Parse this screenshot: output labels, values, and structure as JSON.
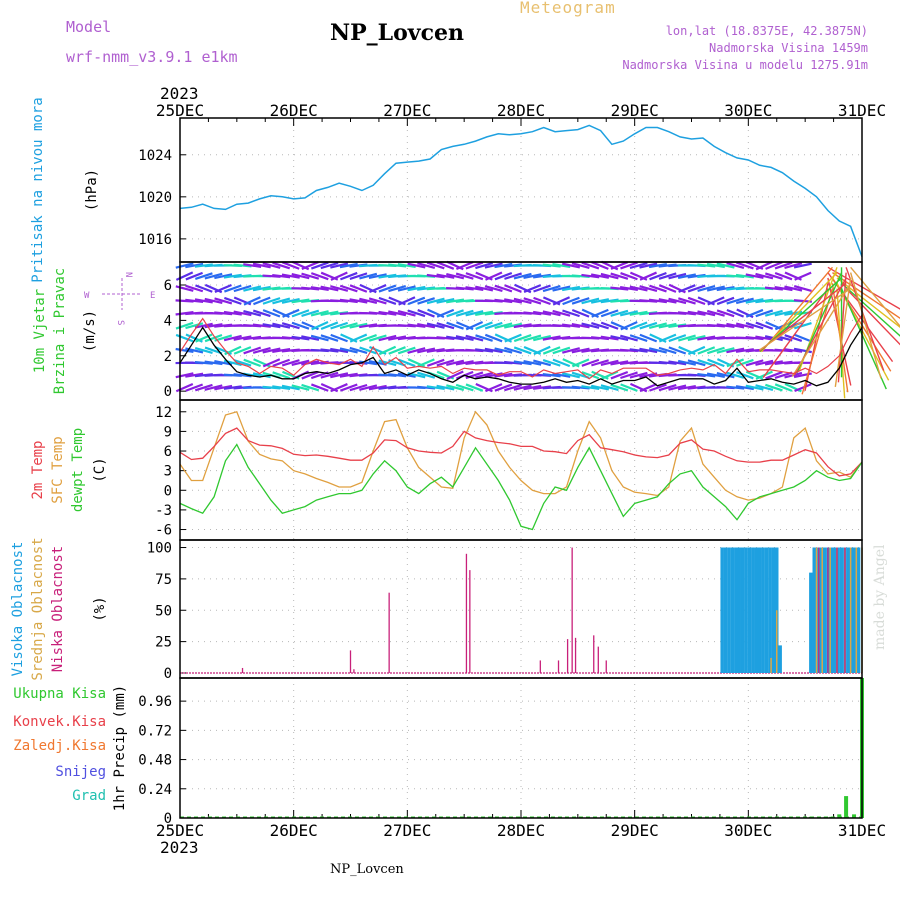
{
  "header": {
    "model_label": "Model",
    "model_name": "wrf-nmm_v3.9.1  e1km",
    "station": "NP_Lovcen",
    "product": "Meteogram",
    "lonlat": "lon,lat (18.8375E, 42.3875N)",
    "altitude": "Nadmorska Visina 1459m",
    "model_altitude": "Nadmorska Visina u modelu 1275.91m",
    "footer_station": "NP_Lovcen",
    "credit": "made by Angel",
    "year_top": "2023",
    "year_bottom": "2023"
  },
  "colors": {
    "pressure": "#1ea0e0",
    "wind_speed": "#000000",
    "gust": "#e8404a",
    "temp2m": "#e8404a",
    "sfc_temp": "#e0a040",
    "dewpoint": "#30c830",
    "high_cloud": "#1ea0e0",
    "mid_cloud": "#d8a848",
    "low_cloud": "#c8207a",
    "total_precip": "#30c830"
  },
  "chart_data": [
    {
      "type": "line",
      "name": "pressure",
      "ylabel_lines": [
        "Pritisak na nivou mora",
        "(hPa)"
      ],
      "x_ticks": [
        "25DEC",
        "26DEC",
        "27DEC",
        "28DEC",
        "29DEC",
        "30DEC",
        "31DEC"
      ],
      "y_ticks": [
        1016,
        1020,
        1024
      ],
      "ylim": [
        1013.8,
        1027.5
      ],
      "grid": true,
      "series": [
        {
          "x": [
            0,
            0.1,
            0.2,
            0.3,
            0.4,
            0.5,
            0.6,
            0.7,
            0.8,
            0.9,
            1.0,
            1.1,
            1.2,
            1.3,
            1.4,
            1.5,
            1.6,
            1.7,
            1.8,
            1.9,
            2.0,
            2.1,
            2.2,
            2.3,
            2.4,
            2.5,
            2.6,
            2.7,
            2.8,
            2.9,
            3.0,
            3.1,
            3.2,
            3.3,
            3.4,
            3.5,
            3.6,
            3.7,
            3.8,
            3.9,
            4.0,
            4.1,
            4.2,
            4.3,
            4.4,
            4.5,
            4.6,
            4.7,
            4.8,
            4.9,
            5.0,
            5.1,
            5.2,
            5.3,
            5.4,
            5.5,
            5.6,
            5.7,
            5.8,
            5.9,
            6.0
          ],
          "y": [
            1018.9,
            1019.0,
            1019.3,
            1018.9,
            1018.8,
            1019.3,
            1019.4,
            1019.8,
            1020.1,
            1020.0,
            1019.8,
            1019.9,
            1020.6,
            1020.9,
            1021.3,
            1021.0,
            1020.6,
            1021.1,
            1022.2,
            1023.2,
            1023.3,
            1023.4,
            1023.6,
            1024.5,
            1024.8,
            1025.0,
            1025.3,
            1025.7,
            1026.0,
            1025.9,
            1026.0,
            1026.2,
            1026.6,
            1026.2,
            1026.3,
            1026.4,
            1026.8,
            1026.3,
            1025.0,
            1025.3,
            1026.0,
            1026.6,
            1026.6,
            1026.2,
            1025.7,
            1025.5,
            1025.6,
            1024.8,
            1024.2,
            1023.7,
            1023.5,
            1023.0,
            1022.8,
            1022.3,
            1021.5,
            1020.8,
            1020.0,
            1018.7,
            1017.7,
            1017.2,
            1014.3
          ]
        }
      ]
    },
    {
      "type": "line",
      "name": "wind",
      "ylabel_lines": [
        "10m Vjetar",
        "Brzina i Pravac",
        "(m/s)"
      ],
      "y_ticks": [
        0,
        2,
        4,
        6
      ],
      "ylim": [
        -0.5,
        7.3
      ],
      "grid": true,
      "compass": {
        "n": "N",
        "s": "S",
        "e": "E",
        "w": "W"
      },
      "series": [
        {
          "name": "speed",
          "x": [
            0,
            0.1,
            0.2,
            0.3,
            0.4,
            0.5,
            0.6,
            0.7,
            0.8,
            0.9,
            1.0,
            1.1,
            1.2,
            1.3,
            1.4,
            1.5,
            1.6,
            1.7,
            1.8,
            1.9,
            2.0,
            2.1,
            2.2,
            2.3,
            2.4,
            2.5,
            2.6,
            2.7,
            2.8,
            2.9,
            3.0,
            3.1,
            3.2,
            3.3,
            3.4,
            3.5,
            3.6,
            3.7,
            3.8,
            3.9,
            4.0,
            4.1,
            4.2,
            4.3,
            4.4,
            4.5,
            4.6,
            4.7,
            4.8,
            4.9,
            5.0,
            5.1,
            5.2,
            5.3,
            5.4,
            5.5,
            5.6,
            5.7,
            5.8,
            5.9,
            6.0
          ],
          "y": [
            1.6,
            2.6,
            3.6,
            2.6,
            1.8,
            1.1,
            0.9,
            0.8,
            0.9,
            0.7,
            0.7,
            1.0,
            1.1,
            1.0,
            1.2,
            1.5,
            1.6,
            1.9,
            1.0,
            1.2,
            0.9,
            1.2,
            1.0,
            0.7,
            0.5,
            0.9,
            0.7,
            0.8,
            0.7,
            0.5,
            0.4,
            0.4,
            0.5,
            0.7,
            0.5,
            0.6,
            0.4,
            0.7,
            0.4,
            0.6,
            0.6,
            0.8,
            0.3,
            0.5,
            0.7,
            0.7,
            0.7,
            0.4,
            0.6,
            1.3,
            0.5,
            0.6,
            0.7,
            0.5,
            0.4,
            0.6,
            0.3,
            0.5,
            1.3,
            2.6,
            3.6
          ]
        },
        {
          "name": "gust",
          "x": [
            0,
            0.1,
            0.2,
            0.3,
            0.4,
            0.5,
            0.6,
            0.7,
            0.8,
            0.9,
            1.0,
            1.1,
            1.2,
            1.3,
            1.4,
            1.5,
            1.6,
            1.7,
            1.8,
            1.9,
            2.0,
            2.1,
            2.2,
            2.3,
            2.4,
            2.5,
            2.6,
            2.7,
            2.8,
            2.9,
            3.0,
            3.1,
            3.2,
            3.3,
            3.4,
            3.5,
            3.6,
            3.7,
            3.8,
            3.9,
            4.0,
            4.1,
            4.2,
            4.3,
            4.4,
            4.5,
            4.6,
            4.7,
            4.8,
            4.9,
            5.0,
            5.1,
            5.2,
            5.3,
            5.4,
            5.5,
            5.6,
            5.7,
            5.8,
            5.9,
            6.0
          ],
          "y": [
            2.2,
            3.2,
            4.1,
            3.1,
            2.3,
            1.6,
            1.4,
            1.0,
            1.4,
            1.3,
            0.9,
            1.5,
            1.8,
            1.6,
            1.5,
            1.8,
            1.4,
            2.5,
            1.5,
            1.9,
            1.3,
            1.4,
            1.3,
            1.4,
            1.0,
            1.3,
            1.2,
            1.2,
            0.9,
            1.1,
            1.1,
            0.8,
            1.2,
            1.0,
            1.1,
            1.2,
            0.7,
            1.2,
            1.0,
            1.3,
            1.3,
            1.3,
            0.9,
            1.0,
            1.2,
            1.3,
            1.2,
            1.5,
            1.0,
            1.8,
            1.1,
            1.2,
            1.2,
            1.1,
            1.0,
            1.3,
            1.0,
            1.4,
            2.0,
            3.3,
            4.3
          ]
        }
      ]
    },
    {
      "type": "line",
      "name": "temperature",
      "ylabel_lines": [
        "2m Temp",
        "SFC Temp",
        "dewpt Temp",
        "(C)"
      ],
      "y_ticks": [
        -6,
        -3,
        0,
        3,
        6,
        9,
        12
      ],
      "ylim": [
        -7.6,
        13.8
      ],
      "grid": true,
      "series": [
        {
          "name": "2m Temp",
          "x": [
            0,
            0.1,
            0.2,
            0.3,
            0.4,
            0.5,
            0.6,
            0.7,
            0.8,
            0.9,
            1.0,
            1.1,
            1.2,
            1.3,
            1.4,
            1.5,
            1.6,
            1.7,
            1.8,
            1.9,
            2.0,
            2.1,
            2.2,
            2.3,
            2.4,
            2.5,
            2.6,
            2.7,
            2.8,
            2.9,
            3.0,
            3.1,
            3.2,
            3.3,
            3.4,
            3.5,
            3.6,
            3.7,
            3.8,
            3.9,
            4.0,
            4.1,
            4.2,
            4.3,
            4.4,
            4.5,
            4.6,
            4.7,
            4.8,
            4.9,
            5.0,
            5.1,
            5.2,
            5.3,
            5.4,
            5.5,
            5.6,
            5.7,
            5.8,
            5.9,
            6.0
          ],
          "y": [
            5.8,
            4.7,
            4.9,
            6.7,
            8.7,
            9.5,
            7.6,
            6.9,
            6.8,
            6.4,
            5.5,
            5.3,
            5.4,
            5.2,
            4.9,
            4.6,
            4.6,
            5.7,
            7.7,
            7.6,
            6.5,
            6.0,
            5.8,
            5.7,
            6.7,
            9.0,
            8.0,
            7.6,
            7.3,
            7.1,
            6.7,
            6.7,
            6.0,
            5.9,
            5.6,
            7.6,
            8.5,
            6.5,
            6.2,
            5.9,
            5.4,
            5.1,
            5.0,
            5.4,
            7.2,
            7.7,
            6.3,
            6.0,
            5.2,
            4.5,
            4.3,
            4.3,
            4.6,
            4.6,
            5.4,
            6.2,
            5.7,
            3.6,
            2.2,
            2.5,
            4.3
          ]
        },
        {
          "name": "SFC Temp",
          "x": [
            0,
            0.1,
            0.2,
            0.3,
            0.4,
            0.5,
            0.6,
            0.7,
            0.8,
            0.9,
            1.0,
            1.1,
            1.2,
            1.3,
            1.4,
            1.5,
            1.6,
            1.7,
            1.8,
            1.9,
            2.0,
            2.1,
            2.2,
            2.3,
            2.4,
            2.5,
            2.6,
            2.7,
            2.8,
            2.9,
            3.0,
            3.1,
            3.2,
            3.3,
            3.4,
            3.5,
            3.6,
            3.7,
            3.8,
            3.9,
            4.0,
            4.1,
            4.2,
            4.3,
            4.4,
            4.5,
            4.6,
            4.7,
            4.8,
            4.9,
            5.0,
            5.1,
            5.2,
            5.3,
            5.4,
            5.5,
            5.6,
            5.7,
            5.8,
            5.9,
            6.0
          ],
          "y": [
            4.0,
            1.5,
            1.5,
            6.5,
            11.5,
            12.0,
            7.5,
            5.5,
            4.8,
            4.5,
            3.0,
            2.5,
            1.8,
            1.2,
            0.5,
            0.5,
            1.2,
            6.0,
            10.5,
            10.8,
            6.5,
            3.5,
            2.0,
            0.5,
            0.3,
            8.0,
            12.0,
            10.0,
            6.0,
            3.5,
            1.5,
            0.0,
            -0.5,
            -0.5,
            0.5,
            6.0,
            10.5,
            8.0,
            3.0,
            0.5,
            -0.3,
            -0.5,
            -0.8,
            0.5,
            7.5,
            9.5,
            4.0,
            2.0,
            0.0,
            -1.0,
            -1.5,
            -1.2,
            -0.5,
            0.5,
            8.0,
            9.5,
            4.5,
            2.5,
            2.8,
            2.0,
            4.3
          ]
        },
        {
          "name": "dewpt Temp",
          "x": [
            0,
            0.1,
            0.2,
            0.3,
            0.4,
            0.5,
            0.6,
            0.7,
            0.8,
            0.9,
            1.0,
            1.1,
            1.2,
            1.3,
            1.4,
            1.5,
            1.6,
            1.7,
            1.8,
            1.9,
            2.0,
            2.1,
            2.2,
            2.3,
            2.4,
            2.5,
            2.6,
            2.7,
            2.8,
            2.9,
            3.0,
            3.1,
            3.2,
            3.3,
            3.4,
            3.5,
            3.6,
            3.7,
            3.8,
            3.9,
            4.0,
            4.1,
            4.2,
            4.3,
            4.4,
            4.5,
            4.6,
            4.7,
            4.8,
            4.9,
            5.0,
            5.1,
            5.2,
            5.3,
            5.4,
            5.5,
            5.6,
            5.7,
            5.8,
            5.9,
            6.0
          ],
          "y": [
            -2.0,
            -2.8,
            -3.5,
            -1.0,
            4.5,
            7.0,
            3.5,
            1.0,
            -1.5,
            -3.5,
            -3.0,
            -2.5,
            -1.5,
            -1.0,
            -0.5,
            -0.5,
            0.0,
            2.5,
            4.5,
            3.0,
            0.5,
            -0.5,
            1.0,
            2.0,
            0.5,
            3.5,
            6.5,
            4.0,
            1.5,
            -1.5,
            -5.5,
            -6.0,
            -2.0,
            0.5,
            0.0,
            3.5,
            6.5,
            3.0,
            -0.5,
            -4.0,
            -2.0,
            -1.5,
            -1.0,
            1.0,
            2.5,
            3.0,
            0.5,
            -1.0,
            -2.5,
            -4.5,
            -2.0,
            -1.0,
            -0.5,
            0.0,
            0.5,
            1.5,
            3.0,
            2.0,
            1.5,
            1.8,
            4.3
          ]
        }
      ]
    },
    {
      "type": "bar",
      "name": "cloud cover",
      "ylabel_lines": [
        "Visoka Oblacnost",
        "Srednja Oblacnost",
        "Niska Oblacnost",
        "(%)"
      ],
      "y_ticks": [
        0,
        25,
        50,
        75,
        100
      ],
      "ylim": [
        -4,
        106
      ],
      "grid": true,
      "series": [
        {
          "name": "Visoka Oblacnost",
          "x": [
            4.77,
            4.8,
            4.83,
            4.86,
            4.89,
            4.92,
            4.95,
            4.98,
            5.01,
            5.04,
            5.07,
            5.1,
            5.13,
            5.16,
            5.19,
            5.22,
            5.25,
            5.28,
            5.31,
            5.34,
            5.37,
            5.4,
            5.43,
            5.46,
            5.49,
            5.52,
            5.55,
            5.58,
            5.61,
            5.64,
            5.67,
            5.7,
            5.73,
            5.76,
            5.79,
            5.82,
            5.85,
            5.88,
            5.91,
            5.94,
            5.97
          ],
          "y": [
            100,
            100,
            100,
            100,
            100,
            100,
            100,
            100,
            100,
            100,
            100,
            100,
            100,
            100,
            100,
            100,
            100,
            22,
            0,
            0,
            0,
            0,
            0,
            0,
            0,
            0,
            80,
            100,
            100,
            100,
            100,
            100,
            100,
            100,
            100,
            100,
            100,
            100,
            100,
            100,
            100
          ]
        },
        {
          "name": "Srednja Oblacnost",
          "x": [
            5.2,
            5.25,
            5.6,
            5.65,
            5.72,
            5.78,
            5.85,
            5.9,
            5.95,
            6.0
          ],
          "y": [
            12,
            50,
            100,
            100,
            100,
            100,
            100,
            100,
            100,
            100
          ]
        },
        {
          "name": "Niska Oblacnost",
          "x": [
            0.55,
            1.5,
            1.53,
            1.84,
            2.52,
            2.55,
            3.17,
            3.33,
            3.41,
            3.45,
            3.48,
            3.64,
            3.68,
            3.75,
            5.62,
            5.7,
            5.78,
            5.85
          ],
          "y": [
            4,
            18,
            3,
            64,
            95,
            82,
            10,
            10,
            27,
            100,
            28,
            30,
            21,
            10,
            100,
            100,
            100,
            100
          ]
        }
      ]
    },
    {
      "type": "bar",
      "name": "precipitation",
      "ylabel_lines": [
        "1hr Precip (mm)"
      ],
      "legend": [
        "Ukupna Kisa",
        "Konvek.Kisa",
        "Zaledj.Kisa",
        "Snijeg",
        "Grad"
      ],
      "legend_colors": [
        "#30c830",
        "#e8404a",
        "#f07830",
        "#5050e0",
        "#20c0b0"
      ],
      "y_ticks": [
        0,
        0.24,
        0.48,
        0.72,
        0.96
      ],
      "ylim": [
        0,
        1.15
      ],
      "grid": true,
      "series": [
        {
          "name": "Ukupna Kisa",
          "x": [
            5.55,
            5.62,
            5.68,
            5.73,
            5.8,
            5.86,
            5.93,
            6.0
          ],
          "y": [
            0.01,
            0.005,
            0.01,
            0.01,
            0.03,
            0.18,
            0.03,
            1.15
          ]
        }
      ]
    }
  ]
}
